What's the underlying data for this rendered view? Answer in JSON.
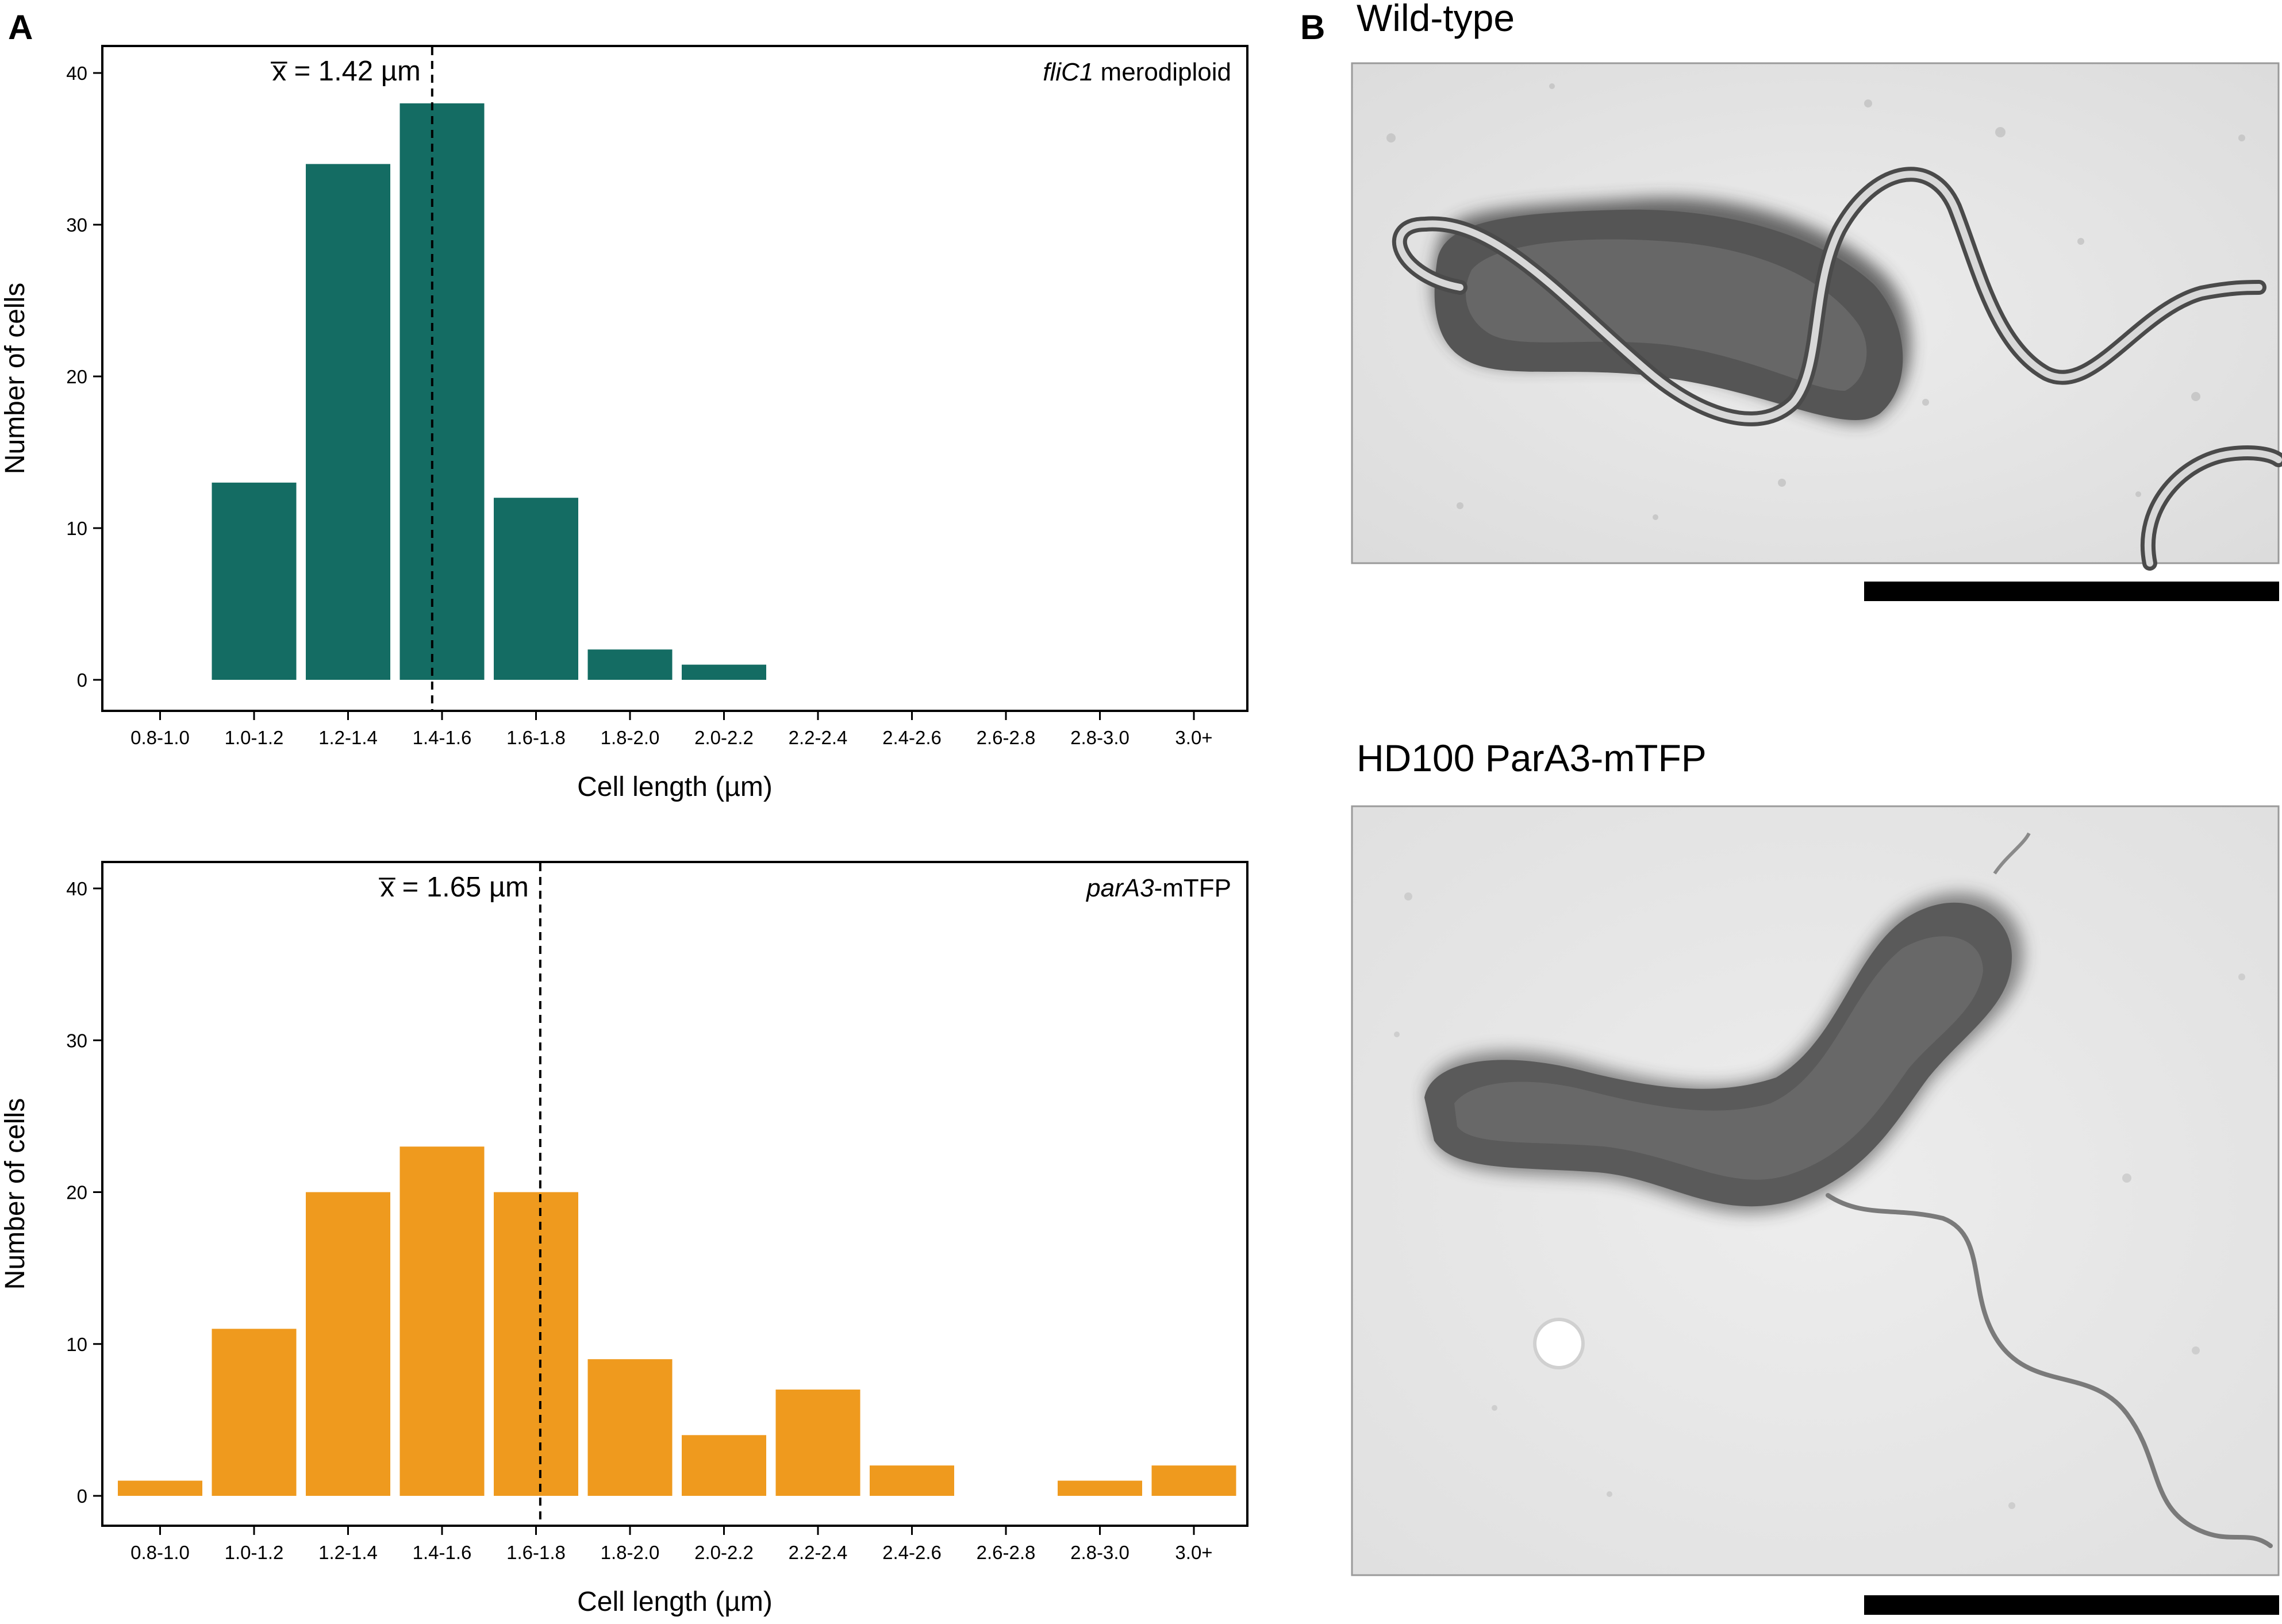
{
  "panel_a": {
    "letter": "A"
  },
  "panel_b": {
    "letter": "B",
    "images": [
      {
        "title": "Wild-type"
      },
      {
        "title": "HD100 ParA3-mTFP"
      }
    ]
  },
  "chart_data": [
    {
      "type": "bar",
      "title": "",
      "xlabel": "Cell length (µm)",
      "ylabel": "Number of cells",
      "ylim": [
        0,
        40
      ],
      "yticks": [
        "0",
        "10",
        "20",
        "30",
        "40"
      ],
      "grid": false,
      "categories": [
        "0.8-1.0",
        "1.0-1.2",
        "1.2-1.4",
        "1.4-1.6",
        "1.6-1.8",
        "1.8-2.0",
        "2.0-2.2",
        "2.2-2.4",
        "2.4-2.6",
        "2.6-2.8",
        "2.8-3.0",
        "3.0+"
      ],
      "values": [
        0,
        13,
        34,
        38,
        12,
        2,
        1,
        0,
        0,
        0,
        0,
        0
      ],
      "color": "#146c63",
      "corner_label_italic": "fliC1",
      "corner_label_rest": " merodiploid",
      "legend_position": "top-right",
      "mean_label": "x̅ = 1.42 µm",
      "mean_value": 1.42
    },
    {
      "type": "bar",
      "title": "",
      "xlabel": "Cell length (µm)",
      "ylabel": "Number of cells",
      "ylim": [
        0,
        40
      ],
      "yticks": [
        "0",
        "10",
        "20",
        "30",
        "40"
      ],
      "grid": false,
      "categories": [
        "0.8-1.0",
        "1.0-1.2",
        "1.2-1.4",
        "1.4-1.6",
        "1.6-1.8",
        "1.8-2.0",
        "2.0-2.2",
        "2.2-2.4",
        "2.4-2.6",
        "2.6-2.8",
        "2.8-3.0",
        "3.0+"
      ],
      "values": [
        1,
        11,
        20,
        23,
        20,
        9,
        4,
        7,
        2,
        0,
        1,
        2
      ],
      "color": "#ef9a1e",
      "corner_label_italic": "parA3",
      "corner_label_rest": "-mTFP",
      "legend_position": "top-right",
      "mean_label": "x̅ = 1.65 µm",
      "mean_value": 1.65
    }
  ]
}
